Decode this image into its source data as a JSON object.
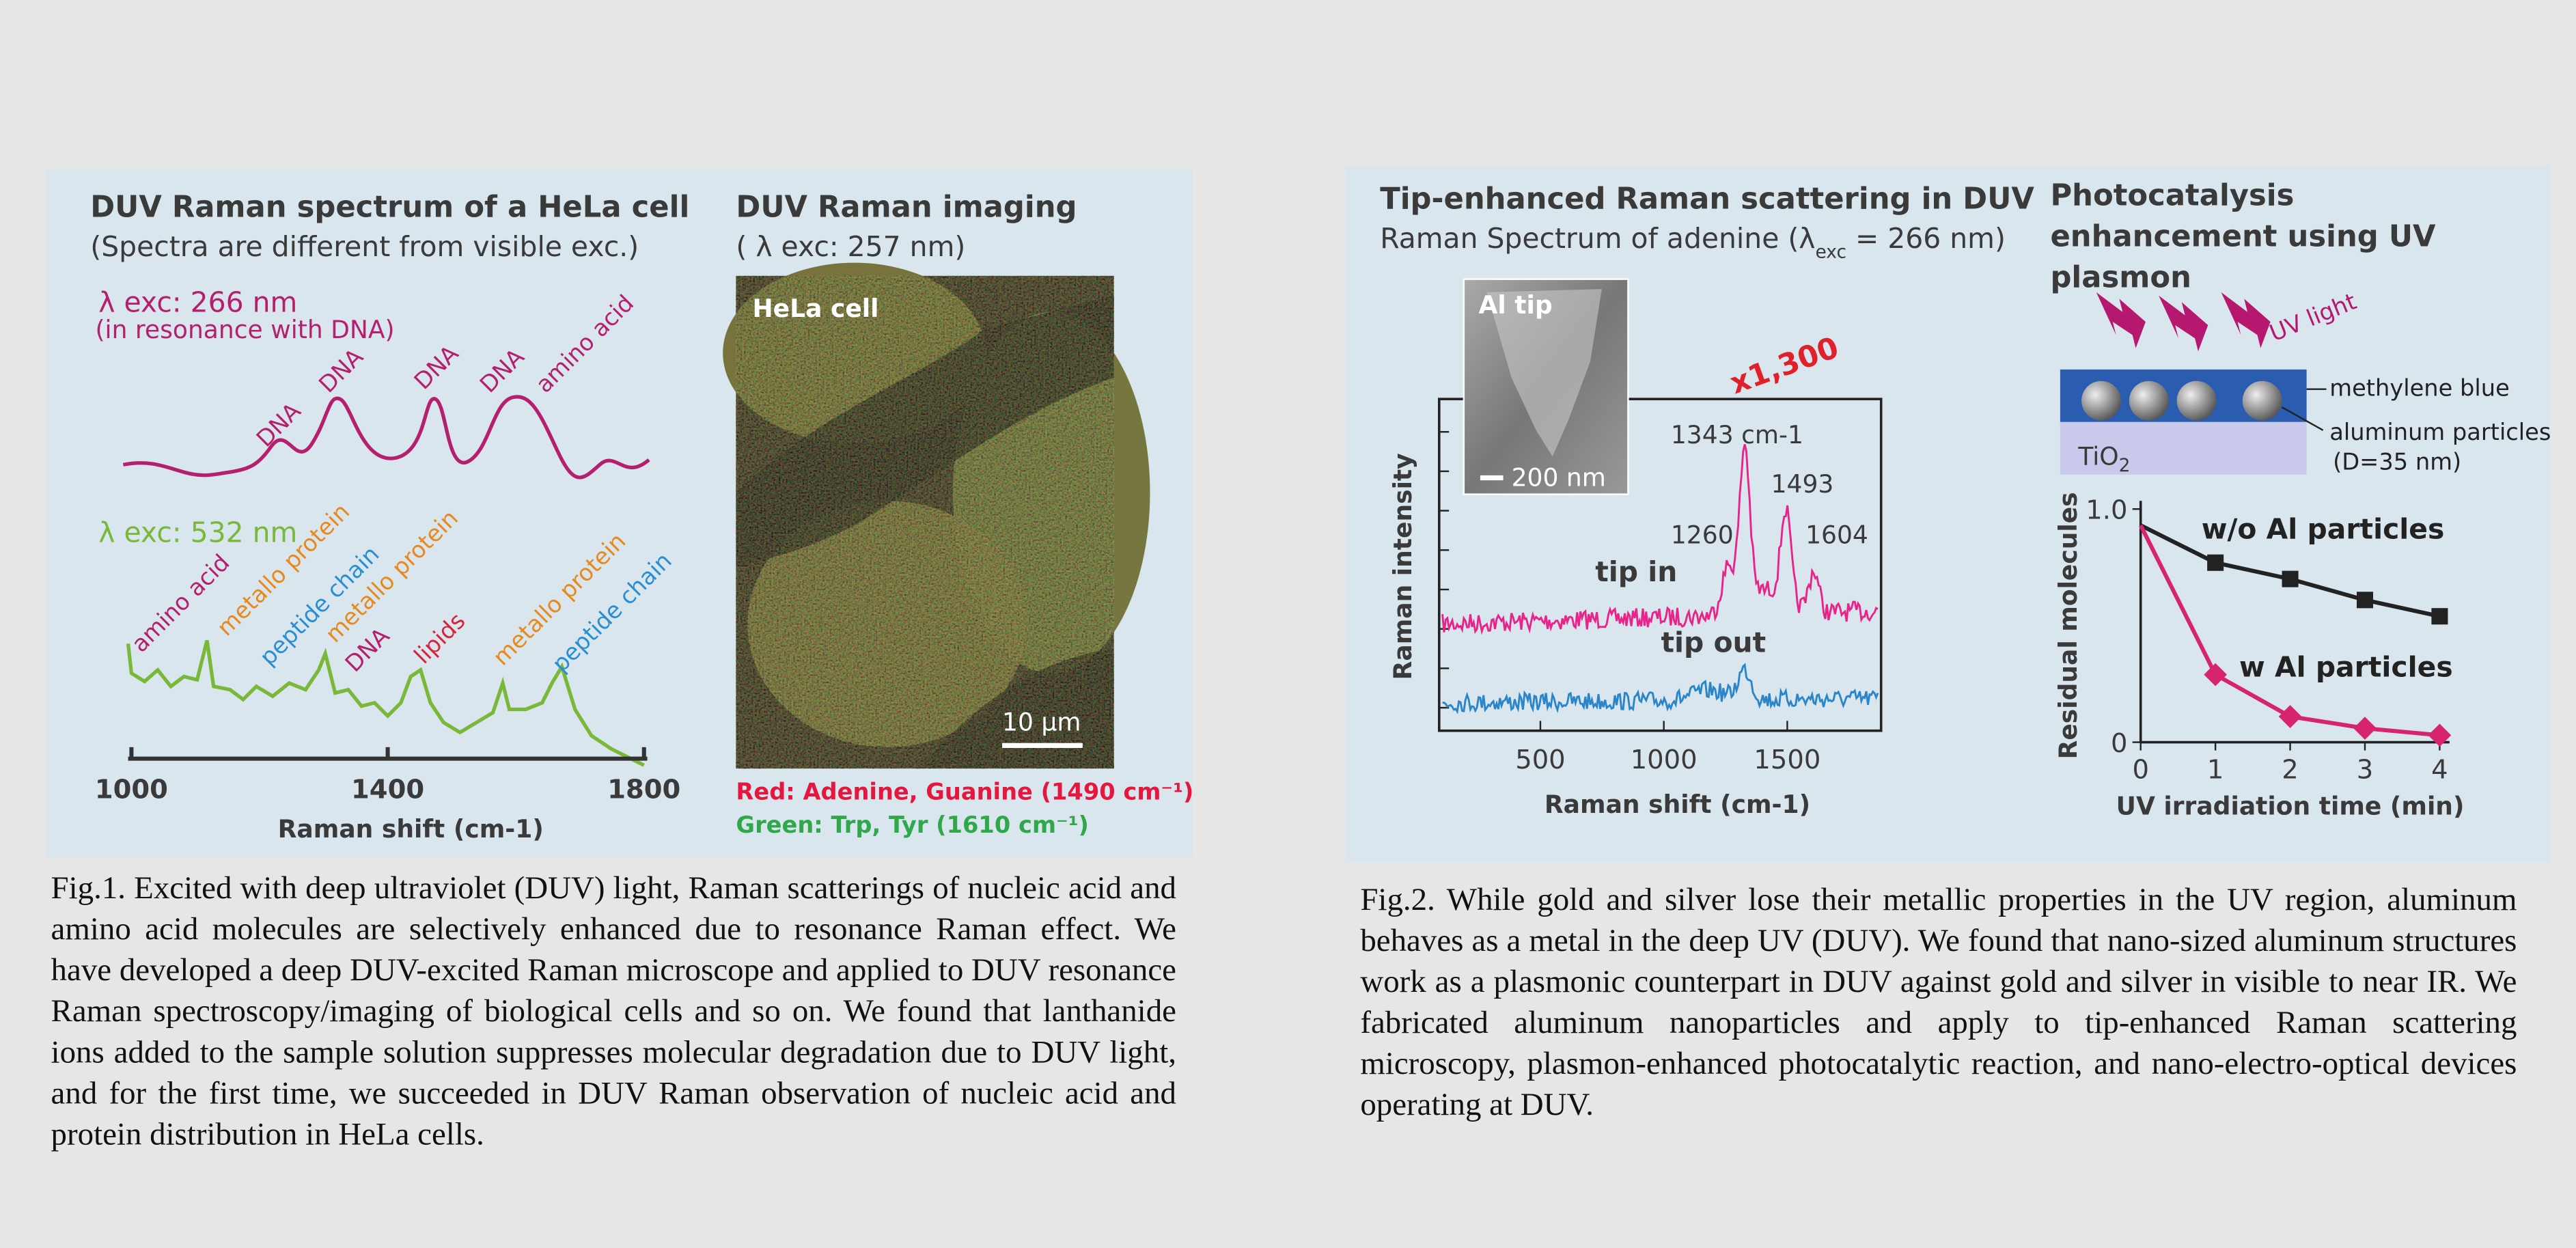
{
  "fig1": {
    "spectrum": {
      "title": "DUV Raman spectrum of a HeLa cell",
      "subtitle": "(Spectra are different from visible exc.)",
      "exc266": {
        "label": "λ exc: 266 nm",
        "note": "(in resonance with DNA)",
        "peaks": [
          "DNA",
          "DNA",
          "DNA",
          "DNA",
          "amino acid"
        ]
      },
      "exc532": {
        "label": "λ exc: 532 nm",
        "peaks": [
          "amino acid",
          "metallo protein",
          "peptide chain",
          "metallo protein",
          "DNA",
          "lipids",
          "metallo protein",
          "peptide chain"
        ]
      },
      "xlim": [
        1000,
        1800
      ],
      "xticks": [
        1000,
        1400,
        1800
      ],
      "xlabel": "Raman shift (cm-1)"
    },
    "imaging": {
      "title": "DUV Raman imaging",
      "subtitle": "( λ exc: 257 nm)",
      "image_label": "HeLa cell",
      "scale_bar": "10 μm",
      "red_channel": "Red: Adenine,  Guanine (1490 cm⁻¹)",
      "green_channel": "Green: Trp,  Tyr (1610 cm⁻¹)"
    },
    "caption": "Fig.1. Excited with deep ultraviolet (DUV) light, Raman scatterings of nucleic acid and amino acid molecules are selectively enhanced due to resonance Raman effect.  We have developed a deep DUV-excited Raman microscope and applied to DUV resonance Raman spectroscopy/imaging of biological cells and so on. We found that lanthanide ions added to the sample solution suppresses molecular degradation due to DUV light, and for the first time, we succeeded in DUV Raman observation of nucleic acid and protein distribution in HeLa cells."
  },
  "fig2": {
    "ters": {
      "title": "Tip-enhanced Raman scattering in DUV",
      "subtitle": [
        "Raman Spectrum of adenine (λ",
        "exc",
        " = 266 nm)"
      ],
      "inset_label": "Al tip",
      "scale_bar": "200 nm",
      "enhancement": "x1,300",
      "peaks": [
        "1343 cm-1",
        "1493",
        "1260",
        "1604"
      ],
      "tip_in": "tip in",
      "tip_out": "tip out",
      "ylabel": "Raman intensity",
      "xlabel": "Raman shift (cm-1)",
      "xlim": [
        90,
        1880
      ],
      "xticks": [
        500,
        1000,
        1500
      ]
    },
    "photocatalysis": {
      "title": "Photocatalysis enhancement using UV plasmon",
      "uv_label": "UV light",
      "layer_label": "methylene blue",
      "particle_label": "aluminum particles",
      "particle_size": "(D=35 nm)",
      "substrate": [
        "TiO",
        "2"
      ],
      "chart_data": {
        "type": "line",
        "xlabel": "UV irradiation time (min)",
        "ylabel": "Residual molecules",
        "x": [
          0,
          1,
          2,
          3,
          4
        ],
        "xlim": [
          0,
          4
        ],
        "ylim": [
          0,
          1
        ],
        "xticks": [
          0,
          1,
          2,
          3,
          4
        ],
        "yticks": [
          0,
          {
            "value": 1,
            "label": "1.0"
          }
        ],
        "series": [
          {
            "name": "w/o Al particles",
            "color": "#222222",
            "values": [
              0.93,
              0.77,
              0.7,
              0.61,
              0.54
            ]
          },
          {
            "name": "w Al particles",
            "color": "#d6246e",
            "values": [
              0.93,
              0.29,
              0.11,
              0.06,
              0.03
            ]
          }
        ]
      }
    },
    "caption": "Fig.2. While gold and silver lose their metallic properties in the UV region, aluminum behaves as a metal in the deep UV (DUV). We found that nano-sized aluminum structures work as a plasmonic counterpart in DUV against gold and silver in visible to near IR. We fabricated aluminum nanoparticles and apply to tip-enhanced Raman scattering microscopy, plasmon-enhanced photocatalytic reaction, and nano-electro-optical devices operating at DUV."
  }
}
